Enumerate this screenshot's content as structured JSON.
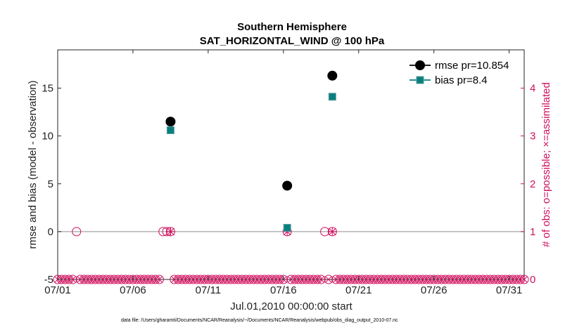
{
  "chart_data": {
    "type": "scatter",
    "title": "Southern Hemisphere",
    "subtitle": "SAT_HORIZONTAL_WIND @ 100 hPa",
    "xlabel": "Jul.01,2010 00:00:00 start",
    "ylabel_left": "rmse and bias (model - observation)",
    "ylabel_right": "# of obs: o=possible; ×=assimilated",
    "footnote": "data file: /Users/gharamti/Documents/NCAR/Reanalysis/~/Documents/NCAR/Reanalysis/webpub/obs_diag_output_2010-07.nc",
    "x_ticks": [
      {
        "day": 1,
        "label": "07/01"
      },
      {
        "day": 6,
        "label": "07/06"
      },
      {
        "day": 11,
        "label": "07/11"
      },
      {
        "day": 16,
        "label": "07/16"
      },
      {
        "day": 21,
        "label": "07/21"
      },
      {
        "day": 26,
        "label": "07/26"
      },
      {
        "day": 31,
        "label": "07/31"
      }
    ],
    "xlim": [
      1,
      32
    ],
    "ylim_left": [
      -5,
      19
    ],
    "yticks_left": [
      -5,
      0,
      5,
      10,
      15
    ],
    "ylim_right": [
      0,
      4.8
    ],
    "yticks_right": [
      0,
      1,
      2,
      3,
      4
    ],
    "grid": false,
    "legend_position": "top-right",
    "series": [
      {
        "name": "rmse pr=10.854",
        "color": "#000000",
        "marker": "circle",
        "x": [
          8.5,
          16.25,
          19.25
        ],
        "y": [
          11.5,
          4.8,
          16.3
        ]
      },
      {
        "name": "bias pr=8.4",
        "color": "#0a7f7f",
        "marker": "square",
        "x": [
          8.5,
          16.25,
          19.25
        ],
        "y": [
          10.6,
          0.4,
          14.1
        ]
      }
    ],
    "obs_count": {
      "color": "#d0105f",
      "possible": {
        "x": [
          2.25,
          8.0,
          8.25,
          8.5,
          16.25,
          18.75,
          19.25
        ],
        "y": [
          1,
          1,
          1,
          1,
          1,
          1,
          1
        ]
      },
      "assimilated": {
        "x": [
          8.5,
          16.25,
          19.25
        ],
        "y": [
          1,
          1,
          1
        ]
      },
      "zero_interval_days": 0.25
    },
    "zero_line_color": "#b3b3b3"
  }
}
